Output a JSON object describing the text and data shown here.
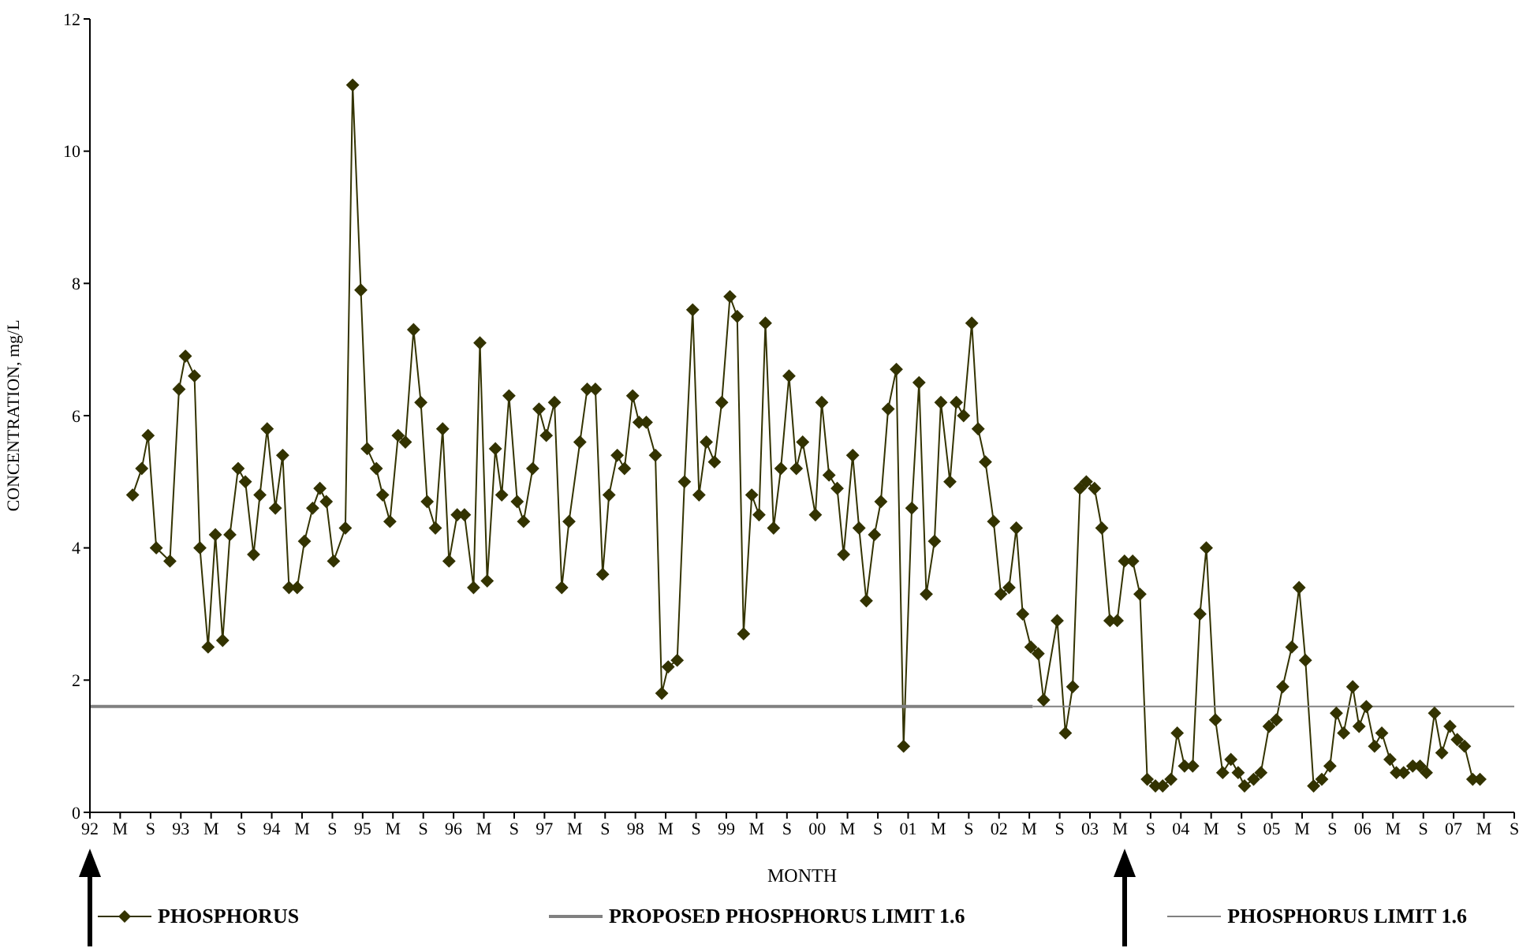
{
  "chart_data": {
    "type": "line",
    "xlabel": "MONTH",
    "ylabel": "CONCENTRATION, mg/L",
    "ylim": [
      0,
      12
    ],
    "yticks": [
      0,
      2,
      4,
      6,
      8,
      10,
      12
    ],
    "xlim": [
      1992,
      2007.667
    ],
    "xticks": [
      {
        "value": 1992,
        "label": "92"
      },
      {
        "value": 1992.333,
        "label": "M"
      },
      {
        "value": 1992.667,
        "label": "S"
      },
      {
        "value": 1993,
        "label": "93"
      },
      {
        "value": 1993.333,
        "label": "M"
      },
      {
        "value": 1993.667,
        "label": "S"
      },
      {
        "value": 1994,
        "label": "94"
      },
      {
        "value": 1994.333,
        "label": "M"
      },
      {
        "value": 1994.667,
        "label": "S"
      },
      {
        "value": 1995,
        "label": "95"
      },
      {
        "value": 1995.333,
        "label": "M"
      },
      {
        "value": 1995.667,
        "label": "S"
      },
      {
        "value": 1996,
        "label": "96"
      },
      {
        "value": 1996.333,
        "label": "M"
      },
      {
        "value": 1996.667,
        "label": "S"
      },
      {
        "value": 1997,
        "label": "97"
      },
      {
        "value": 1997.333,
        "label": "M"
      },
      {
        "value": 1997.667,
        "label": "S"
      },
      {
        "value": 1998,
        "label": "98"
      },
      {
        "value": 1998.333,
        "label": "M"
      },
      {
        "value": 1998.667,
        "label": "S"
      },
      {
        "value": 1999,
        "label": "99"
      },
      {
        "value": 1999.333,
        "label": "M"
      },
      {
        "value": 1999.667,
        "label": "S"
      },
      {
        "value": 2000,
        "label": "00"
      },
      {
        "value": 2000.333,
        "label": "M"
      },
      {
        "value": 2000.667,
        "label": "S"
      },
      {
        "value": 2001,
        "label": "01"
      },
      {
        "value": 2001.333,
        "label": "M"
      },
      {
        "value": 2001.667,
        "label": "S"
      },
      {
        "value": 2002,
        "label": "02"
      },
      {
        "value": 2002.333,
        "label": "M"
      },
      {
        "value": 2002.667,
        "label": "S"
      },
      {
        "value": 2003,
        "label": "03"
      },
      {
        "value": 2003.333,
        "label": "M"
      },
      {
        "value": 2003.667,
        "label": "S"
      },
      {
        "value": 2004,
        "label": "04"
      },
      {
        "value": 2004.333,
        "label": "M"
      },
      {
        "value": 2004.667,
        "label": "S"
      },
      {
        "value": 2005,
        "label": "05"
      },
      {
        "value": 2005.333,
        "label": "M"
      },
      {
        "value": 2005.667,
        "label": "S"
      },
      {
        "value": 2006,
        "label": "06"
      },
      {
        "value": 2006.333,
        "label": "M"
      },
      {
        "value": 2006.667,
        "label": "S"
      },
      {
        "value": 2007,
        "label": "07"
      },
      {
        "value": 2007.333,
        "label": "M"
      },
      {
        "value": 2007.667,
        "label": "S"
      }
    ],
    "legend": "bottom",
    "grid": false,
    "series": [
      {
        "name": "PHOSPHORUS",
        "color": "#333300",
        "marker": "diamond",
        "x": [
          1992.47,
          1992.57,
          1992.64,
          1992.73,
          1992.88,
          1992.98,
          1993.05,
          1993.15,
          1993.21,
          1993.3,
          1993.38,
          1993.46,
          1993.54,
          1993.63,
          1993.71,
          1993.8,
          1993.87,
          1993.95,
          1994.04,
          1994.12,
          1994.19,
          1994.28,
          1994.36,
          1994.45,
          1994.53,
          1994.6,
          1994.68,
          1994.81,
          1994.89,
          1994.98,
          1995.05,
          1995.15,
          1995.22,
          1995.3,
          1995.39,
          1995.47,
          1995.56,
          1995.64,
          1995.71,
          1995.8,
          1995.88,
          1995.95,
          1996.04,
          1996.12,
          1996.22,
          1996.29,
          1996.37,
          1996.46,
          1996.53,
          1996.61,
          1996.7,
          1996.77,
          1996.87,
          1996.94,
          1997.02,
          1997.11,
          1997.19,
          1997.27,
          1997.39,
          1997.47,
          1997.56,
          1997.64,
          1997.71,
          1997.8,
          1997.88,
          1997.97,
          1998.04,
          1998.12,
          1998.22,
          1998.29,
          1998.36,
          1998.46,
          1998.54,
          1998.63,
          1998.7,
          1998.78,
          1998.87,
          1998.95,
          1999.04,
          1999.12,
          1999.19,
          1999.28,
          1999.36,
          1999.43,
          1999.52,
          1999.6,
          1999.69,
          1999.77,
          1999.84,
          1999.98,
          2000.05,
          2000.13,
          2000.22,
          2000.29,
          2000.39,
          2000.46,
          2000.54,
          2000.63,
          2000.7,
          2000.78,
          2000.87,
          2000.95,
          2001.04,
          2001.12,
          2001.2,
          2001.29,
          2001.36,
          2001.46,
          2001.53,
          2001.61,
          2001.7,
          2001.77,
          2001.85,
          2001.94,
          2002.02,
          2002.11,
          2002.19,
          2002.26,
          2002.35,
          2002.43,
          2002.49,
          2002.64,
          2002.73,
          2002.81,
          2002.89,
          2002.96,
          2003.05,
          2003.13,
          2003.22,
          2003.3,
          2003.38,
          2003.47,
          2003.55,
          2003.63,
          2003.72,
          2003.8,
          2003.89,
          2003.96,
          2004.04,
          2004.13,
          2004.21,
          2004.28,
          2004.38,
          2004.46,
          2004.55,
          2004.63,
          2004.7,
          2004.8,
          2004.88,
          2004.97,
          2005.05,
          2005.12,
          2005.22,
          2005.3,
          2005.37,
          2005.46,
          2005.55,
          2005.64,
          2005.71,
          2005.79,
          2005.89,
          2005.96,
          2006.04,
          2006.13,
          2006.21,
          2006.3,
          2006.37,
          2006.45,
          2006.55,
          2006.63,
          2006.7,
          2006.79,
          2006.87,
          2006.96,
          2007.04,
          2007.12,
          2007.21,
          2007.29
        ],
        "values": [
          4.8,
          5.2,
          5.7,
          4.0,
          3.8,
          6.4,
          6.9,
          6.6,
          4.0,
          2.5,
          4.2,
          2.6,
          4.2,
          5.2,
          5.0,
          3.9,
          4.8,
          5.8,
          4.6,
          5.4,
          3.4,
          3.4,
          4.1,
          4.6,
          4.9,
          4.7,
          3.8,
          4.3,
          11.0,
          7.9,
          5.5,
          5.2,
          4.8,
          4.4,
          5.7,
          5.6,
          7.3,
          6.2,
          4.7,
          4.3,
          5.8,
          3.8,
          4.5,
          4.5,
          3.4,
          7.1,
          3.5,
          5.5,
          4.8,
          6.3,
          4.7,
          4.4,
          5.2,
          6.1,
          5.7,
          6.2,
          3.4,
          4.4,
          5.6,
          6.4,
          6.4,
          3.6,
          4.8,
          5.4,
          5.2,
          6.3,
          5.9,
          5.9,
          5.4,
          1.8,
          2.2,
          2.3,
          5.0,
          7.6,
          4.8,
          5.6,
          5.3,
          6.2,
          7.8,
          7.5,
          2.7,
          4.8,
          4.5,
          7.4,
          4.3,
          5.2,
          6.6,
          5.2,
          5.6,
          4.5,
          6.2,
          5.1,
          4.9,
          3.9,
          5.4,
          4.3,
          3.2,
          4.2,
          4.7,
          6.1,
          6.7,
          1.0,
          4.6,
          6.5,
          3.3,
          4.1,
          6.2,
          5.0,
          6.2,
          6.0,
          7.4,
          5.8,
          5.3,
          4.4,
          3.3,
          3.4,
          4.3,
          3.0,
          2.5,
          2.4,
          1.7,
          2.9,
          1.2,
          1.9,
          4.9,
          5.0,
          4.9,
          4.3,
          2.9,
          2.9,
          3.8,
          3.8,
          3.3,
          0.5,
          0.4,
          0.4,
          0.5,
          1.2,
          0.7,
          0.7,
          3.0,
          4.0,
          1.4,
          0.6,
          0.8,
          0.6,
          0.4,
          0.5,
          0.6,
          1.3,
          1.4,
          1.9,
          2.5,
          3.4,
          2.3,
          0.4,
          0.5,
          0.7,
          1.5,
          1.2,
          1.9,
          1.3,
          1.6,
          1.0,
          1.2,
          0.8,
          0.6,
          0.6,
          0.7,
          0.7,
          0.6,
          1.5,
          0.9,
          1.3,
          1.1,
          1.0,
          0.5,
          0.5
        ]
      },
      {
        "name": "PROPOSED PHOSPHORUS LIMIT 1.6",
        "color": "#808080",
        "marker": "none",
        "x": [
          1992,
          2002.37
        ],
        "values": [
          1.6,
          1.6
        ]
      },
      {
        "name": "PHOSPHORUS LIMIT 1.6",
        "color": "#808080",
        "marker": "none",
        "x": [
          2002.37,
          2007.667
        ],
        "values": [
          1.6,
          1.6
        ]
      }
    ]
  }
}
